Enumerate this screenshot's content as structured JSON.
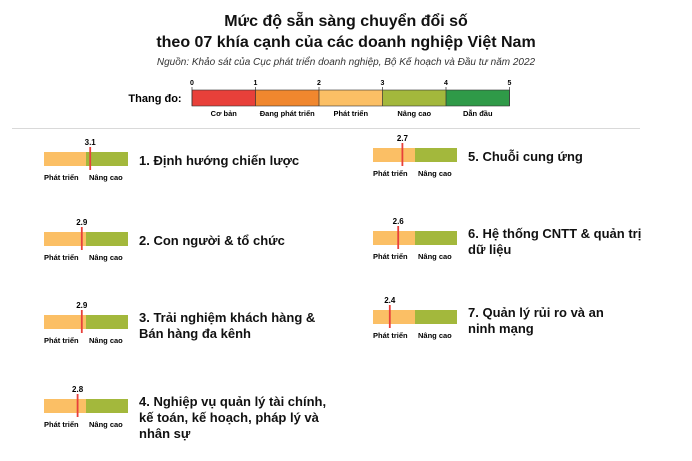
{
  "title_line1": "Mức độ sẵn sàng chuyển đổi số",
  "title_line2": "theo 07 khía cạnh của các doanh nghiệp Việt Nam",
  "source": "Nguồn: Khảo sát của Cục phát triển doanh nghiệp, Bộ Kế hoạch và Đầu tư năm 2022",
  "colors": {
    "co_ban": "#e8403a",
    "dang_phat_trien": "#f0872e",
    "phat_trien": "#fbbf65",
    "nang_cao": "#a3b83c",
    "dan_dau": "#2f9a48",
    "marker": "#e8403a"
  },
  "scale": {
    "label": "Thang đo:",
    "ticks": [
      "0",
      "1",
      "2",
      "3",
      "4",
      "5"
    ],
    "levels": [
      "Cơ bản",
      "Đang phát triển",
      "Phát triển",
      "Nâng cao",
      "Dẫn đầu"
    ]
  },
  "chart_data": {
    "type": "bar",
    "range": [
      2,
      4
    ],
    "segment_labels": [
      "Phát triển",
      "Nâng cao"
    ],
    "categories": [
      "1. Định hướng chiến lược",
      "2. Con người & tổ chức",
      "3. Trải nghiệm khách hàng & Bán hàng đa kênh",
      "4. Nghiệp vụ quản lý tài chính, kế toán, kế hoạch, pháp lý và nhân sự",
      "5. Chuỗi cung ứng",
      "6. Hệ thống CNTT & quản trị dữ liệu",
      "7. Quản lý rủi ro và an ninh mạng"
    ],
    "values": [
      3.1,
      2.9,
      2.9,
      2.8,
      2.7,
      2.6,
      2.4
    ],
    "value_labels": [
      "3.1",
      "2.9",
      "2.9",
      "2.8",
      "2.7",
      "2.6",
      "2.4"
    ]
  },
  "dimensions": [
    {
      "value": 3.1,
      "value_label": "3.1",
      "lines": [
        "1. Định hướng chiến lược"
      ],
      "seg1": "Phát triển",
      "seg2": "Nâng cao"
    },
    {
      "value": 2.9,
      "value_label": "2.9",
      "lines": [
        "2. Con người & tổ chức"
      ],
      "seg1": "Phát triển",
      "seg2": "Nâng cao"
    },
    {
      "value": 2.9,
      "value_label": "2.9",
      "lines": [
        "3. Trải nghiệm khách hàng &",
        "Bán hàng đa kênh"
      ],
      "seg1": "Phát triển",
      "seg2": "Nâng cao"
    },
    {
      "value": 2.8,
      "value_label": "2.8",
      "lines": [
        "4. Nghiệp vụ quản lý tài chính,",
        "kế toán, kế hoạch, pháp lý và",
        "nhân sự"
      ],
      "seg1": "Phát triển",
      "seg2": "Nâng cao"
    },
    {
      "value": 2.7,
      "value_label": "2.7",
      "lines": [
        "5. Chuỗi cung ứng"
      ],
      "seg1": "Phát triển",
      "seg2": "Nâng cao"
    },
    {
      "value": 2.6,
      "value_label": "2.6",
      "lines": [
        "6. Hệ thống CNTT & quản trị",
        "dữ liệu"
      ],
      "seg1": "Phát triển",
      "seg2": "Nâng cao"
    },
    {
      "value": 2.4,
      "value_label": "2.4",
      "lines": [
        "7. Quản lý rủi ro và an",
        "ninh mạng"
      ],
      "seg1": "Phát triển",
      "seg2": "Nâng cao"
    }
  ]
}
